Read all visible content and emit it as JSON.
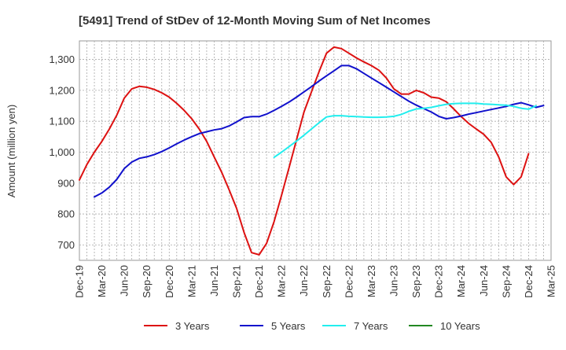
{
  "chart_data": {
    "type": "line",
    "title": "[5491]  Trend of StDev of 12-Month Moving Sum of Net Incomes",
    "ylabel": "Amount (million yen)",
    "xlabel": "",
    "ylim": [
      650,
      1360
    ],
    "yticks": [
      700,
      800,
      900,
      1000,
      1100,
      1200,
      1300
    ],
    "ytick_labels": [
      "700",
      "800",
      "900",
      "1,000",
      "1,100",
      "1,200",
      "1,300"
    ],
    "xlim": [
      0,
      63
    ],
    "xticks": [
      0,
      3,
      6,
      9,
      12,
      15,
      18,
      21,
      24,
      27,
      30,
      33,
      36,
      39,
      42,
      45,
      48,
      51,
      54,
      57,
      60,
      63
    ],
    "xtick_labels": [
      "Dec-19",
      "Mar-20",
      "Jun-20",
      "Sep-20",
      "Dec-20",
      "Mar-21",
      "Jun-21",
      "Sep-21",
      "Dec-21",
      "Mar-22",
      "Jun-22",
      "Sep-22",
      "Dec-22",
      "Mar-23",
      "Jun-23",
      "Sep-23",
      "Dec-23",
      "Mar-24",
      "Jun-24",
      "Sep-24",
      "Dec-24",
      "Mar-25"
    ],
    "grid": true,
    "legend_position": "bottom",
    "series": [
      {
        "name": "3 Years",
        "color": "#dd1111",
        "x_start": 0,
        "values": [
          910,
          960,
          1000,
          1035,
          1075,
          1120,
          1175,
          1205,
          1213,
          1210,
          1203,
          1192,
          1178,
          1158,
          1135,
          1108,
          1075,
          1035,
          985,
          935,
          878,
          818,
          740,
          675,
          668,
          705,
          775,
          860,
          950,
          1040,
          1130,
          1195,
          1260,
          1320,
          1340,
          1335,
          1320,
          1305,
          1292,
          1280,
          1265,
          1240,
          1205,
          1188,
          1188,
          1200,
          1192,
          1178,
          1175,
          1163,
          1140,
          1115,
          1093,
          1075,
          1058,
          1032,
          985,
          920,
          895,
          920,
          995
        ]
      },
      {
        "name": "5 Years",
        "color": "#1111cc",
        "x_start": 2,
        "values": [
          855,
          868,
          887,
          912,
          947,
          968,
          980,
          985,
          992,
          1002,
          1014,
          1027,
          1039,
          1050,
          1060,
          1066,
          1072,
          1076,
          1085,
          1098,
          1112,
          1115,
          1115,
          1123,
          1135,
          1148,
          1162,
          1178,
          1195,
          1212,
          1230,
          1247,
          1263,
          1280,
          1280,
          1270,
          1255,
          1240,
          1225,
          1210,
          1195,
          1180,
          1165,
          1152,
          1141,
          1130,
          1116,
          1108,
          1112,
          1117,
          1123,
          1128,
          1133,
          1138,
          1143,
          1148,
          1155,
          1160,
          1153,
          1145,
          1151
        ]
      },
      {
        "name": "7 Years",
        "color": "#22eeee",
        "x_start": 26,
        "values": [
          983,
          1000,
          1018,
          1036,
          1055,
          1075,
          1095,
          1114,
          1118,
          1118,
          1116,
          1115,
          1114,
          1113,
          1113,
          1114,
          1116,
          1122,
          1132,
          1140,
          1142,
          1145,
          1150,
          1155,
          1157,
          1158,
          1158,
          1158,
          1156,
          1155,
          1153,
          1152,
          1148,
          1142,
          1139,
          1150
        ]
      },
      {
        "name": "10 Years",
        "color": "#228822",
        "x_start": 0,
        "values": []
      }
    ]
  }
}
